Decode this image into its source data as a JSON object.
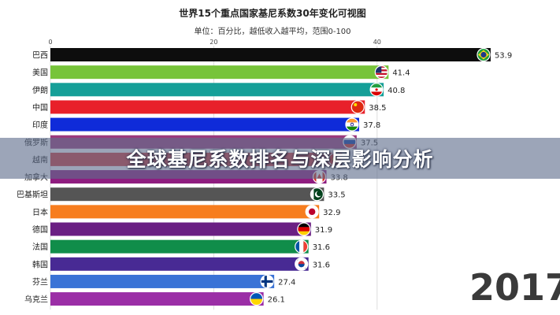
{
  "chart_data": {
    "type": "bar",
    "orientation": "horizontal",
    "title": "世界15个重点国家基尼系数30年变化可视图",
    "subtitle": "单位：百分比，越低收入越平均，范围0-100",
    "x_ticks": [
      0,
      20,
      40
    ],
    "xlim": [
      0,
      55
    ],
    "grid": true,
    "categories": [
      "巴西",
      "美国",
      "伊朗",
      "中国",
      "印度",
      "俄罗斯",
      "越南",
      "加拿大",
      "巴基斯坦",
      "日本",
      "德国",
      "法国",
      "韩国",
      "芬兰",
      "乌克兰"
    ],
    "values": [
      53.9,
      41.4,
      40.8,
      38.5,
      37.8,
      37.5,
      35.7,
      33.8,
      33.5,
      32.9,
      31.9,
      31.6,
      31.6,
      27.4,
      26.1
    ],
    "value_labels": [
      "53.9",
      "41.4",
      "40.8",
      "38.5",
      "37.8",
      "37.5",
      "",
      "33.8",
      "33.5",
      "32.9",
      "31.9",
      "31.6",
      "31.6",
      "27.4",
      "26.1"
    ],
    "colors": [
      "#0d0d0d",
      "#77c43a",
      "#159f98",
      "#e8202a",
      "#0f2bd9",
      "#9b3a7d",
      "#d23a3a",
      "#8e1c7f",
      "#555555",
      "#f77d1e",
      "#6a1f83",
      "#108d4a",
      "#482a94",
      "#3a73d6",
      "#9b2ea6"
    ],
    "flag_icons": [
      "brazil-flag-icon",
      "usa-flag-icon",
      "iran-flag-icon",
      "china-flag-icon",
      "india-flag-icon",
      "russia-flag-icon",
      "vietnam-flag-icon",
      "canada-flag-icon",
      "pakistan-flag-icon",
      "japan-flag-icon",
      "germany-flag-icon",
      "france-flag-icon",
      "korea-flag-icon",
      "finland-flag-icon",
      "ukraine-flag-icon"
    ]
  },
  "overlay": {
    "banner_text": "全球基尼系数排名与深层影响分析",
    "year": "2017"
  }
}
